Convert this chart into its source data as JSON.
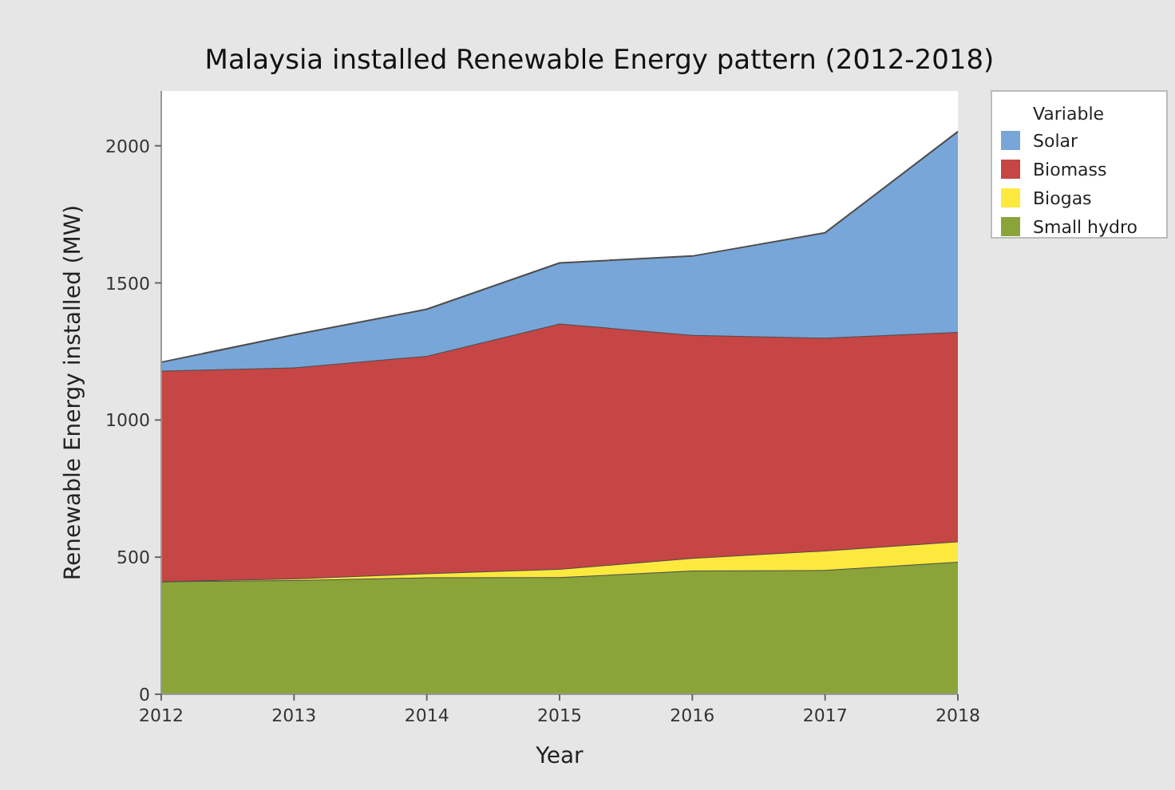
{
  "chart_data": {
    "type": "area",
    "title": "Malaysia installed Renewable Energy pattern (2012-2018)",
    "xlabel": "Year",
    "ylabel": "Renewable Energy installed (MW)",
    "legend_title": "Variable",
    "x": [
      2012,
      2013,
      2014,
      2015,
      2016,
      2017,
      2018
    ],
    "stacked": true,
    "series": [
      {
        "name": "Small hydro",
        "color": "#8aa43a",
        "values": [
          412,
          416,
          426,
          427,
          451,
          453,
          483
        ]
      },
      {
        "name": "Biogas",
        "color": "#fde93e",
        "values": [
          0,
          6,
          15,
          30,
          46,
          71,
          74
        ]
      },
      {
        "name": "Biomass",
        "color": "#c64545",
        "values": [
          768,
          770,
          793,
          895,
          813,
          776,
          764
        ]
      },
      {
        "name": "Solar",
        "color": "#79a6d8",
        "values": [
          31,
          119,
          170,
          221,
          288,
          383,
          731
        ]
      }
    ],
    "xlim": [
      2012,
      2018
    ],
    "xticks": [
      2012,
      2013,
      2014,
      2015,
      2016,
      2017,
      2018
    ],
    "ylim": [
      0,
      2200
    ],
    "yticks": [
      0,
      500,
      1000,
      1500,
      2000
    ],
    "grid": false,
    "legend": "top right"
  }
}
